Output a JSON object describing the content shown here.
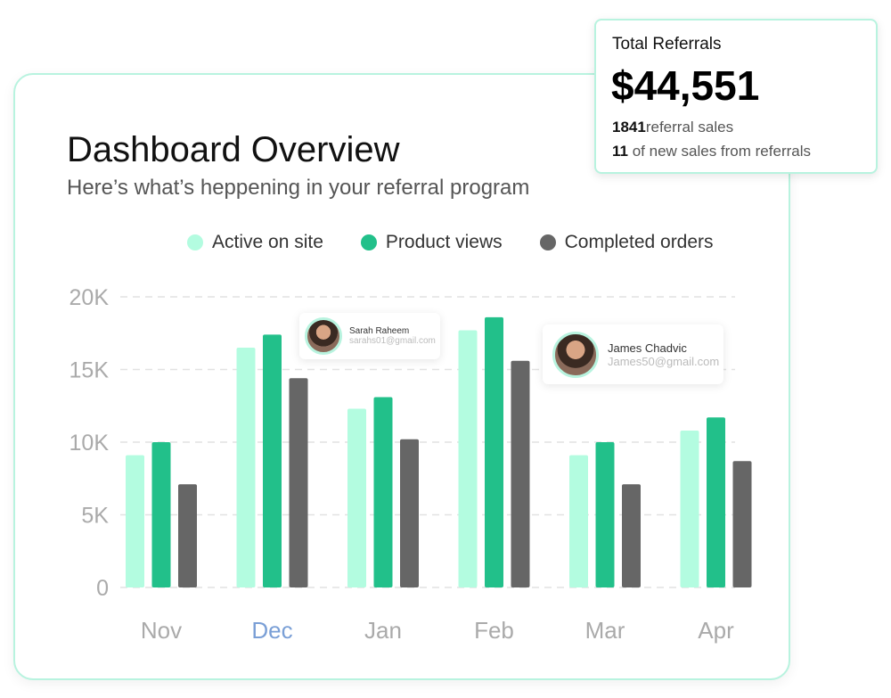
{
  "header": {
    "title": "Dashboard Overview",
    "subtitle": "Here’s what’s heppening in your referral program"
  },
  "referral_card": {
    "title": "Total Referrals",
    "amount": "$44,551",
    "sales_count": "1841",
    "sales_label": "referral sales",
    "new_count": "11",
    "new_label": " of new sales from referrals"
  },
  "users": [
    {
      "name": "Sarah Raheem",
      "email": "sarahs01@gmail.com",
      "icon": "avatar-photo"
    },
    {
      "name": "James Chadvic",
      "email": "James50@gmail.com",
      "icon": "avatar-photo"
    }
  ],
  "colors": {
    "active": "#b3fce0",
    "views": "#22c08a",
    "orders": "#666666",
    "border": "#b8f3df",
    "highlight_month": "#7a9fd6"
  },
  "chart_data": {
    "type": "bar",
    "categories": [
      "Nov",
      "Dec",
      "Jan",
      "Feb",
      "Mar",
      "Apr"
    ],
    "highlighted_category": "Dec",
    "series": [
      {
        "name": "Active on site",
        "values": [
          9100,
          16500,
          12300,
          17700,
          9100,
          10800
        ]
      },
      {
        "name": "Product views",
        "values": [
          10000,
          17400,
          13100,
          18600,
          10000,
          11700
        ]
      },
      {
        "name": "Completed orders",
        "values": [
          7100,
          14400,
          10200,
          15600,
          7100,
          8700
        ]
      }
    ],
    "yticks": [
      "0",
      "5K",
      "10K",
      "15K",
      "20K"
    ],
    "ylim": [
      0,
      20000
    ],
    "grid": true,
    "legend": "top"
  }
}
